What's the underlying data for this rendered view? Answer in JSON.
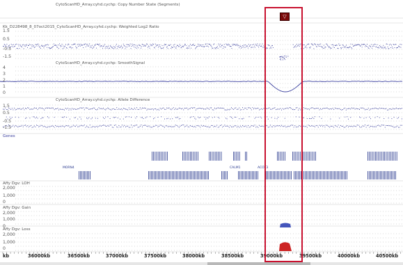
{
  "tracks": {
    "segments_label": "CytoScanHD_Array.cyhd.cychp: Copy Number State (Segments)",
    "log2_label": "Kk_D228498_8_07oct2015_CytoScanHD_Array.cyhd.cychp: Weighted Log2 Ratio",
    "smooth_label": "CytoScanHD_Array.cyhd.cychp: SmoothSignal",
    "allele_label": "CytoScanHD_Array.cyhd.cychp: Allele Difference",
    "genes_label": "Genes",
    "loh_label": "Affy Dgv: LOH",
    "gain_label": "Affy Dgv: Gain",
    "loss_label": "Affy Dgv: Loss"
  },
  "ticks": {
    "log2": [
      "1.5",
      "0.5",
      "-0.5",
      "-1.5"
    ],
    "smooth": [
      "4",
      "3",
      "2",
      "1",
      "0"
    ],
    "allele": [
      "1.5",
      "0.5",
      "-0.5",
      "-1.5"
    ],
    "loh": [
      "2,000",
      "1,000",
      "0"
    ],
    "gain": [
      "2,000",
      "1,000",
      "0"
    ],
    "loss": [
      "2,000",
      "1,000",
      "0"
    ]
  },
  "gene_labels": [
    "MORN4",
    "CALM1",
    "ACOT3"
  ],
  "ruler": [
    "kb",
    "36000kb",
    "36500kb",
    "37000kb",
    "37500kb",
    "38000kb",
    "38500kb",
    "39000kb",
    "39500kb",
    "40000kb",
    "40500kb"
  ],
  "marker_glyph": "▽",
  "colors": {
    "signal": "#3a3f9e",
    "gene": "#2a3a8f",
    "gain": "#4455bb",
    "loss": "#cc2222",
    "selection": "#c8102e",
    "marker": "#7a0a0a"
  }
}
